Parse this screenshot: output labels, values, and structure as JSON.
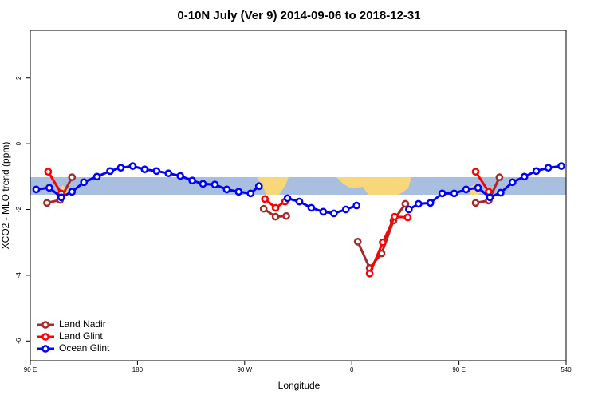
{
  "chart_data": {
    "type": "line",
    "title": "0-10N July (Ver 9)   2014-09-06 to 2018-12-31",
    "x_label": "Longitude",
    "y_label": "XCO2 - MLO trend (ppm)",
    "xlim": [
      90,
      540
    ],
    "xticks": [
      {
        "value": 90,
        "label": "90 E"
      },
      180,
      {
        "value": 270,
        "label": "90 W"
      },
      {
        "value": 360,
        "label": "0"
      },
      {
        "value": 450,
        "label": "90 E"
      },
      540
    ],
    "ylim": [
      -6.6,
      3.45
    ],
    "yticks": [
      -6,
      -4,
      -2,
      0,
      2
    ],
    "legend": "bottom-left",
    "series": [
      {
        "name": "Land Nadir",
        "color": "#a52a2a",
        "x": [
          104,
          115,
          125,
          null,
          286,
          296,
          305,
          null,
          365,
          375,
          385,
          395,
          405,
          null,
          464,
          475,
          484
        ],
        "values": [
          -1.8,
          -1.71,
          -1.02,
          null,
          -1.98,
          -2.22,
          -2.2,
          null,
          -2.98,
          -3.78,
          -3.34,
          -2.34,
          -1.83,
          null,
          -1.8,
          -1.73,
          -1.02
        ]
      },
      {
        "name": "Land Glint",
        "color": "#ff0000",
        "x": [
          105,
          116,
          null,
          287,
          296,
          304,
          null,
          375,
          386,
          396,
          407,
          null,
          464,
          475
        ],
        "values": [
          -0.85,
          -1.51,
          null,
          -1.68,
          -1.95,
          -1.76,
          null,
          -3.95,
          -3.0,
          -2.22,
          -2.24,
          null,
          -0.85,
          -1.46
        ]
      },
      {
        "name": "Ocean Glint",
        "color": "#0000ff",
        "x": [
          95,
          106,
          116,
          125,
          135,
          146,
          157,
          166,
          176,
          186,
          196,
          206,
          216,
          226,
          235,
          245,
          255,
          265,
          275,
          282,
          null,
          306,
          316,
          326,
          336,
          345,
          355,
          364,
          null,
          408,
          416,
          426,
          436,
          446,
          456,
          466,
          476,
          485,
          495,
          505,
          515,
          525,
          536
        ],
        "values": [
          -1.39,
          -1.34,
          -1.63,
          -1.46,
          -1.17,
          -1.0,
          -0.83,
          -0.73,
          -0.68,
          -0.78,
          -0.83,
          -0.9,
          -0.98,
          -1.12,
          -1.22,
          -1.24,
          -1.39,
          -1.46,
          -1.51,
          -1.29,
          null,
          -1.66,
          -1.76,
          -1.95,
          -2.07,
          -2.12,
          -2.0,
          -1.88,
          null,
          -2.0,
          -1.83,
          -1.8,
          -1.51,
          -1.51,
          -1.39,
          -1.34,
          -1.63,
          -1.49,
          -1.17,
          -1.0,
          -0.83,
          -0.73,
          -0.68
        ]
      }
    ]
  }
}
